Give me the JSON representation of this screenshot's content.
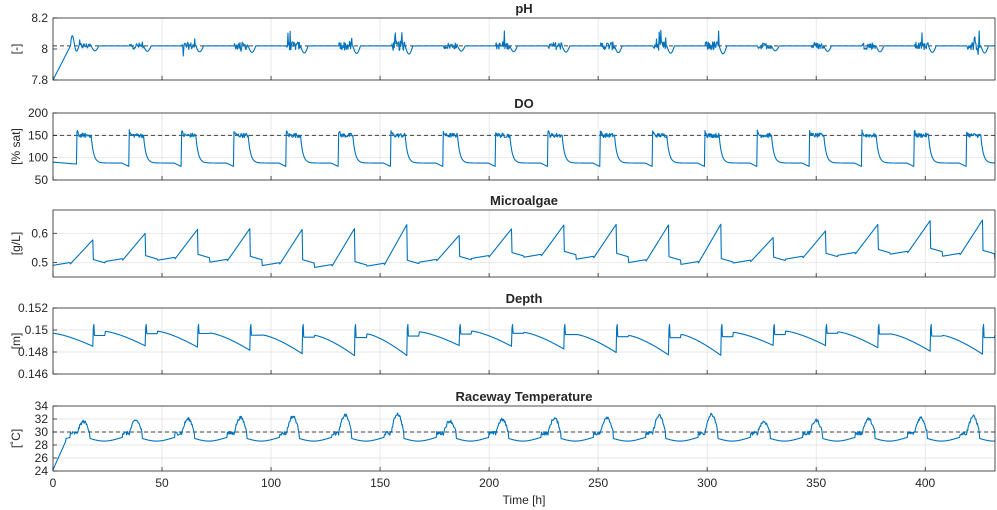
{
  "chart_data": [
    {
      "id": "ph",
      "type": "line",
      "title": "pH",
      "ylabel": "[-]",
      "ylim": [
        7.8,
        8.2
      ],
      "yticks": [
        7.8,
        8,
        8.2
      ],
      "ytick_labels": [
        "7.8",
        "8",
        "8.2"
      ],
      "reference": 8.02,
      "series": [
        {
          "name": "pH",
          "model": "ph"
        }
      ]
    },
    {
      "id": "do",
      "type": "line",
      "title": "DO",
      "ylabel": "[% sat]",
      "ylim": [
        50,
        200
      ],
      "yticks": [
        50,
        100,
        150,
        200
      ],
      "ytick_labels": [
        "50",
        "100",
        "150",
        "200"
      ],
      "reference": 150,
      "series": [
        {
          "name": "DO",
          "model": "do"
        }
      ]
    },
    {
      "id": "microalgae",
      "type": "line",
      "title": "Microalgae",
      "ylabel": "[g/L]",
      "ylim": [
        0.45,
        0.68
      ],
      "yticks": [
        0.5,
        0.6
      ],
      "ytick_labels": [
        "0.5",
        "0.6"
      ],
      "reference": null,
      "series": [
        {
          "name": "Microalgae",
          "model": "algae"
        }
      ]
    },
    {
      "id": "depth",
      "type": "line",
      "title": "Depth",
      "ylabel": "[m]",
      "ylim": [
        0.146,
        0.152
      ],
      "yticks": [
        0.146,
        0.148,
        0.15,
        0.152
      ],
      "ytick_labels": [
        "0.146",
        "0.148",
        "0.15",
        "0.152"
      ],
      "reference": null,
      "series": [
        {
          "name": "Depth",
          "model": "depth"
        }
      ]
    },
    {
      "id": "temperature",
      "type": "line",
      "title": "Raceway Temperature",
      "ylabel": "[˚C]",
      "ylim": [
        24,
        34
      ],
      "yticks": [
        24,
        26,
        28,
        30,
        32,
        34
      ],
      "ytick_labels": [
        "24",
        "26",
        "28",
        "30",
        "32",
        "34"
      ],
      "reference": 30,
      "series": [
        {
          "name": "Temperature",
          "model": "temp"
        }
      ]
    }
  ],
  "x_axis": {
    "label": "Time [h]",
    "xlim": [
      0,
      432
    ],
    "ticks": [
      0,
      50,
      100,
      150,
      200,
      250,
      300,
      350,
      400
    ],
    "tick_labels": [
      "0",
      "50",
      "100",
      "150",
      "200",
      "250",
      "300",
      "350",
      "400"
    ]
  },
  "colors": {
    "series": "#0072bd",
    "reference": "#404040",
    "grid": "#dfdfdf",
    "axis": "#262626"
  }
}
